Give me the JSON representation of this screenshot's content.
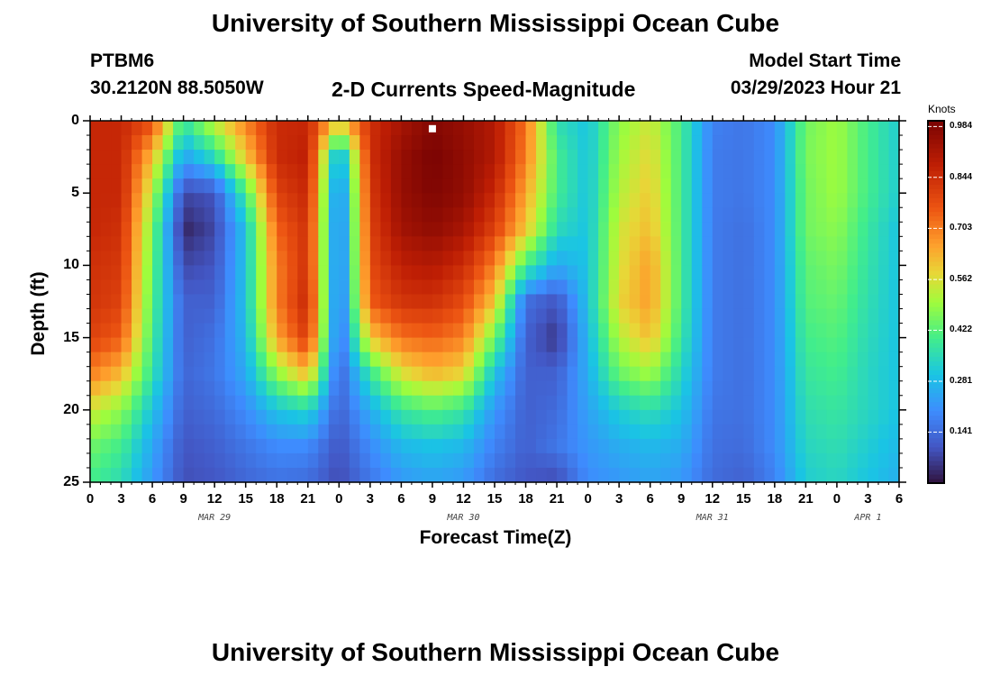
{
  "header": {
    "title": "University of Southern Mississippi Ocean Cube",
    "station": "PTBM6",
    "coords": "30.2120N  88.5050W",
    "product": "2-D Currents Speed-Magnitude",
    "model_label": "Model Start Time",
    "model_time": "03/29/2023 Hour 21",
    "footer_title": "University of Southern Mississippi Ocean Cube"
  },
  "chart_data": {
    "type": "heatmap",
    "title": "2-D Currents Speed-Magnitude",
    "xlabel": "Forecast Time(Z)",
    "ylabel": "Depth (ft)",
    "colorbar_label": "Knots",
    "colorbar_ticks": [
      0.141,
      0.281,
      0.422,
      0.562,
      0.703,
      0.844,
      0.984
    ],
    "colorbar_range": [
      0.0,
      1.0
    ],
    "y_ticks": [
      0,
      5,
      10,
      15,
      20,
      25
    ],
    "ylim": [
      0,
      25
    ],
    "x_tick_labels": [
      "0",
      "3",
      "6",
      "9",
      "12",
      "15",
      "18",
      "21",
      "0",
      "3",
      "6",
      "9",
      "12",
      "15",
      "18",
      "21",
      "0",
      "3",
      "6",
      "9",
      "12",
      "15",
      "18",
      "21",
      "0",
      "3",
      "6"
    ],
    "x_range_hours": [
      0,
      78
    ],
    "date_labels": [
      {
        "label": "MAR 29",
        "hour": 12
      },
      {
        "label": "MAR 30",
        "hour": 36
      },
      {
        "label": "MAR 31",
        "hour": 60
      },
      {
        "label": "APR 1",
        "hour": 75
      }
    ],
    "depth_rows": [
      0,
      2.5,
      5,
      7.5,
      10,
      12.5,
      15,
      17.5,
      20,
      22.5,
      25
    ],
    "time_cols_hours": [
      0,
      3,
      6,
      9,
      12,
      15,
      18,
      21,
      24,
      27,
      30,
      33,
      36,
      39,
      42,
      45,
      48,
      51,
      54,
      57,
      60,
      63,
      66,
      69,
      72,
      75,
      78
    ],
    "speed_knots": [
      [
        0.86,
        0.86,
        0.78,
        0.38,
        0.55,
        0.7,
        0.85,
        0.86,
        0.6,
        0.84,
        0.92,
        0.98,
        0.95,
        0.9,
        0.72,
        0.36,
        0.3,
        0.48,
        0.55,
        0.4,
        0.18,
        0.16,
        0.2,
        0.45,
        0.5,
        0.4,
        0.32
      ],
      [
        0.86,
        0.86,
        0.62,
        0.24,
        0.35,
        0.6,
        0.85,
        0.88,
        0.22,
        0.84,
        0.95,
        1.0,
        0.96,
        0.9,
        0.7,
        0.4,
        0.3,
        0.5,
        0.58,
        0.4,
        0.17,
        0.16,
        0.2,
        0.46,
        0.5,
        0.4,
        0.32
      ],
      [
        0.86,
        0.86,
        0.52,
        0.08,
        0.1,
        0.4,
        0.8,
        0.86,
        0.15,
        0.82,
        0.95,
        0.99,
        0.96,
        0.86,
        0.65,
        0.4,
        0.3,
        0.52,
        0.6,
        0.4,
        0.17,
        0.16,
        0.2,
        0.45,
        0.5,
        0.4,
        0.32
      ],
      [
        0.86,
        0.84,
        0.46,
        0.03,
        0.08,
        0.3,
        0.74,
        0.84,
        0.14,
        0.8,
        0.93,
        0.96,
        0.92,
        0.8,
        0.6,
        0.35,
        0.3,
        0.55,
        0.62,
        0.4,
        0.17,
        0.15,
        0.2,
        0.45,
        0.48,
        0.38,
        0.3
      ],
      [
        0.84,
        0.82,
        0.44,
        0.08,
        0.1,
        0.3,
        0.7,
        0.84,
        0.14,
        0.78,
        0.88,
        0.9,
        0.85,
        0.7,
        0.4,
        0.25,
        0.3,
        0.56,
        0.66,
        0.4,
        0.17,
        0.15,
        0.2,
        0.43,
        0.46,
        0.37,
        0.3
      ],
      [
        0.83,
        0.8,
        0.42,
        0.12,
        0.12,
        0.3,
        0.7,
        0.86,
        0.13,
        0.75,
        0.83,
        0.84,
        0.78,
        0.6,
        0.15,
        0.1,
        0.3,
        0.58,
        0.66,
        0.4,
        0.17,
        0.15,
        0.2,
        0.42,
        0.44,
        0.36,
        0.3
      ],
      [
        0.8,
        0.75,
        0.4,
        0.12,
        0.15,
        0.28,
        0.65,
        0.82,
        0.13,
        0.6,
        0.72,
        0.74,
        0.7,
        0.45,
        0.12,
        0.05,
        0.28,
        0.52,
        0.62,
        0.38,
        0.17,
        0.15,
        0.2,
        0.4,
        0.42,
        0.35,
        0.3
      ],
      [
        0.7,
        0.62,
        0.37,
        0.13,
        0.16,
        0.25,
        0.48,
        0.62,
        0.12,
        0.38,
        0.56,
        0.62,
        0.58,
        0.3,
        0.12,
        0.12,
        0.26,
        0.44,
        0.5,
        0.34,
        0.17,
        0.15,
        0.2,
        0.38,
        0.4,
        0.34,
        0.3
      ],
      [
        0.55,
        0.48,
        0.3,
        0.12,
        0.14,
        0.2,
        0.3,
        0.34,
        0.12,
        0.26,
        0.38,
        0.42,
        0.38,
        0.22,
        0.12,
        0.14,
        0.24,
        0.32,
        0.36,
        0.3,
        0.16,
        0.15,
        0.2,
        0.36,
        0.38,
        0.34,
        0.3
      ],
      [
        0.45,
        0.4,
        0.25,
        0.1,
        0.12,
        0.16,
        0.2,
        0.2,
        0.1,
        0.2,
        0.28,
        0.3,
        0.28,
        0.18,
        0.12,
        0.16,
        0.22,
        0.26,
        0.28,
        0.26,
        0.15,
        0.14,
        0.2,
        0.34,
        0.36,
        0.32,
        0.28
      ],
      [
        0.4,
        0.35,
        0.22,
        0.09,
        0.1,
        0.13,
        0.15,
        0.14,
        0.08,
        0.16,
        0.22,
        0.24,
        0.22,
        0.14,
        0.1,
        0.08,
        0.2,
        0.22,
        0.24,
        0.22,
        0.14,
        0.12,
        0.18,
        0.32,
        0.34,
        0.3,
        0.26
      ]
    ],
    "marker": {
      "hour": 33,
      "depth": 0.3,
      "color": "#ffffff"
    },
    "colors": {
      "frame": "#000000",
      "grid_on": false
    }
  }
}
